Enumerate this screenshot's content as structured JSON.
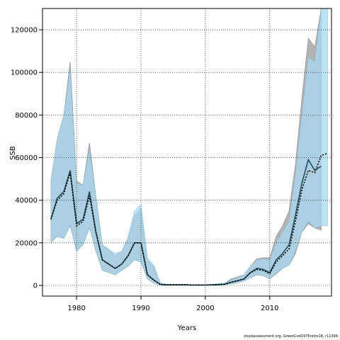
{
  "chart_data": {
    "type": "area",
    "xlabel": "Years",
    "ylabel": "SSB",
    "xlim": [
      1974.7,
      2019.6
    ],
    "ylim": [
      -5000,
      130000
    ],
    "xticks": [
      1980,
      1990,
      2000,
      2010
    ],
    "yticks": [
      0,
      20000,
      40000,
      60000,
      80000,
      100000,
      120000
    ],
    "ytick_labels": [
      "0",
      "20000",
      "40000",
      "60000",
      "80000",
      "100000",
      "120000"
    ],
    "grid": true,
    "colors": {
      "grey_band": "#b3b3b3",
      "blue_band": "#aad8f0",
      "overlap": "#a3c4d4",
      "median_line": "#1f4e5f",
      "point_line": "#000000"
    },
    "years": [
      1976,
      1977,
      1978,
      1979,
      1980,
      1981,
      1982,
      1983,
      1984,
      1985,
      1986,
      1987,
      1988,
      1989,
      1990,
      1991,
      1992,
      1993,
      1994,
      1995,
      1996,
      1997,
      1998,
      1999,
      2000,
      2001,
      2002,
      2003,
      2004,
      2005,
      2006,
      2007,
      2008,
      2009,
      2010,
      2011,
      2012,
      2013,
      2014,
      2015,
      2016,
      2017,
      2018
    ],
    "series": [
      {
        "label": "grey_band",
        "upper": [
          49000,
          69000,
          80000,
          105000,
          49000,
          47000,
          67000,
          42000,
          19000,
          17000,
          14000,
          16000,
          22000,
          33000,
          36000,
          12000,
          9000,
          1000,
          500,
          500,
          500,
          500,
          300,
          300,
          300,
          500,
          800,
          1000,
          3000,
          4000,
          5000,
          9000,
          12500,
          13000,
          13000,
          23000,
          28000,
          35000,
          57000,
          88000,
          116000,
          112000,
          130000
        ],
        "lower": [
          20000,
          23000,
          22000,
          28000,
          16000,
          19000,
          27000,
          16000,
          7000,
          6000,
          5000,
          7000,
          9000,
          12000,
          11000,
          3000,
          1000,
          200,
          100,
          100,
          100,
          100,
          100,
          100,
          100,
          100,
          200,
          300,
          700,
          1200,
          2000,
          3500,
          5000,
          4500,
          3000,
          5500,
          8000,
          9500,
          15000,
          25000,
          29000,
          27000,
          26000
        ]
      },
      {
        "label": "blue_band",
        "upper": [
          49000,
          69000,
          80000,
          102000,
          48000,
          47000,
          64000,
          42000,
          19000,
          17000,
          15000,
          16000,
          23000,
          35000,
          38000,
          13000,
          9500,
          1200,
          600,
          500,
          500,
          500,
          300,
          300,
          300,
          500,
          800,
          1000,
          2500,
          3500,
          5000,
          9000,
          12000,
          12500,
          12000,
          20000,
          25000,
          30000,
          52000,
          80000,
          107000,
          105000,
          130000,
          130000
        ],
        "lower": [
          20000,
          23000,
          22000,
          28000,
          16000,
          19000,
          27000,
          16000,
          7000,
          6000,
          5000,
          7000,
          9000,
          12000,
          11000,
          3000,
          1000,
          200,
          100,
          100,
          100,
          100,
          100,
          100,
          100,
          100,
          200,
          300,
          700,
          1200,
          2000,
          3500,
          5000,
          4500,
          3000,
          6000,
          8000,
          9500,
          16000,
          25000,
          30000,
          27000,
          28000,
          28000
        ],
        "years": [
          1976,
          1977,
          1978,
          1979,
          1980,
          1981,
          1982,
          1983,
          1984,
          1985,
          1986,
          1987,
          1988,
          1989,
          1990,
          1991,
          1992,
          1993,
          1994,
          1995,
          1996,
          1997,
          1998,
          1999,
          2000,
          2001,
          2002,
          2003,
          2004,
          2005,
          2006,
          2007,
          2008,
          2009,
          2010,
          2011,
          2012,
          2013,
          2014,
          2015,
          2016,
          2017,
          2018,
          2019
        ]
      },
      {
        "label": "median",
        "values": [
          31000,
          41000,
          44000,
          54000,
          29000,
          31000,
          44000,
          25000,
          12000,
          10000,
          8000,
          10000,
          14000,
          20000,
          20000,
          5000,
          2500,
          500,
          300,
          300,
          300,
          300,
          200,
          200,
          200,
          300,
          400,
          600,
          1500,
          2200,
          3000,
          6000,
          8000,
          7500,
          6000,
          12000,
          15000,
          19000,
          33000,
          48000,
          59000,
          54000,
          56000
        ]
      },
      {
        "label": "point",
        "values": [
          31000,
          40000,
          43000,
          53000,
          28000,
          30000,
          42000,
          25000,
          12000,
          10000,
          8000,
          10000,
          14000,
          20000,
          20000,
          5000,
          2500,
          500,
          300,
          300,
          300,
          300,
          200,
          200,
          200,
          300,
          400,
          600,
          1500,
          2200,
          3000,
          6000,
          7500,
          7000,
          5500,
          11000,
          14000,
          17000,
          30000,
          45000,
          54000,
          53000,
          61000,
          62000
        ],
        "years": [
          1976,
          1977,
          1978,
          1979,
          1980,
          1981,
          1982,
          1983,
          1984,
          1985,
          1986,
          1987,
          1988,
          1989,
          1990,
          1991,
          1992,
          1993,
          1994,
          1995,
          1996,
          1997,
          1998,
          1999,
          2000,
          2001,
          2002,
          2003,
          2004,
          2005,
          2006,
          2007,
          2008,
          2009,
          2010,
          2011,
          2012,
          2013,
          2014,
          2015,
          2016,
          2017,
          2018,
          2019
        ]
      }
    ]
  },
  "footer": "stockassessment.org, GreenCod1976retro18, r11394"
}
